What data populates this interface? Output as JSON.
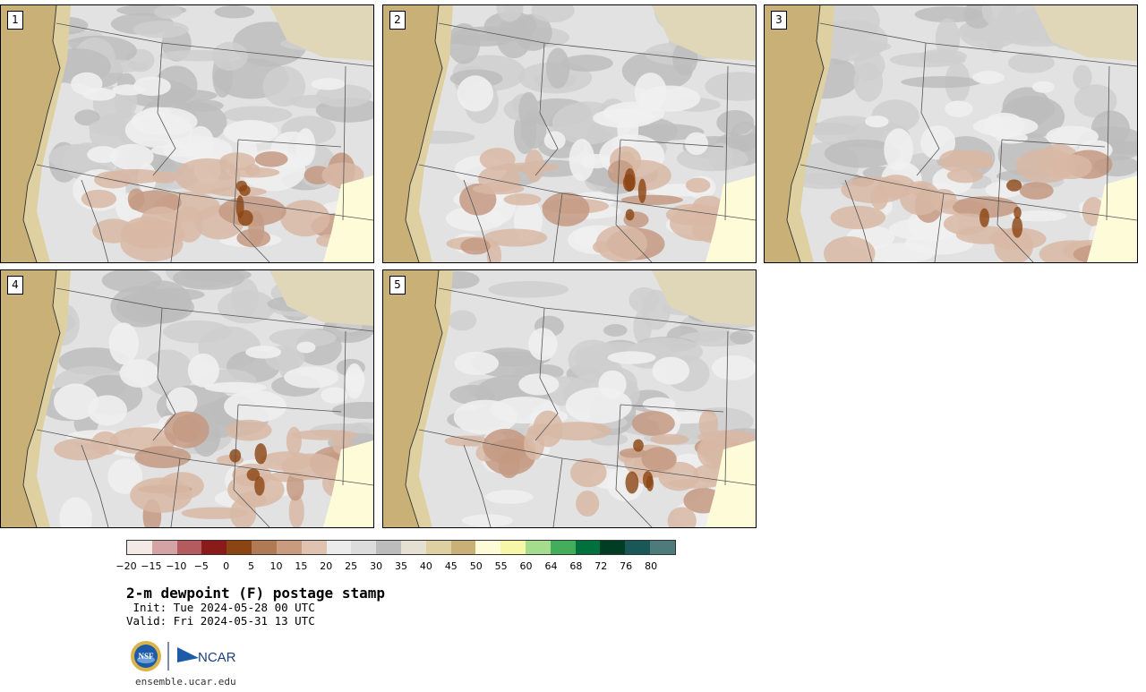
{
  "panels": [
    {
      "label": "1"
    },
    {
      "label": "2"
    },
    {
      "label": "3"
    },
    {
      "label": "4"
    },
    {
      "label": "5"
    }
  ],
  "colorbar": {
    "colors": [
      "#f3e9e6",
      "#d4a3a3",
      "#b35b5e",
      "#8b1a1a",
      "#8b4513",
      "#b07a55",
      "#c99c80",
      "#e0c2b0",
      "#ececec",
      "#dcdcdc",
      "#bcbcbc",
      "#e4e0d2",
      "#dfd0a2",
      "#c8b077",
      "#fefbd8",
      "#f6f7a8",
      "#a6dc8e",
      "#44ad5c",
      "#00703d",
      "#003d24",
      "#1a5858",
      "#4d7a7a"
    ],
    "ticks": [
      "−20",
      "−15",
      "−10",
      "−5",
      "0",
      "5",
      "10",
      "15",
      "20",
      "25",
      "30",
      "35",
      "40",
      "45",
      "50",
      "55",
      "60",
      "64",
      "68",
      "72",
      "76",
      "80"
    ]
  },
  "title": "2-m dewpoint (F) postage stamp",
  "init": " Init: Tue 2024-05-28 00 UTC",
  "valid": "Valid: Fri 2024-05-31 13 UTC",
  "logo": {
    "nsf": "NSF",
    "ncar": "NCAR"
  },
  "website": "ensemble.ucar.edu"
}
